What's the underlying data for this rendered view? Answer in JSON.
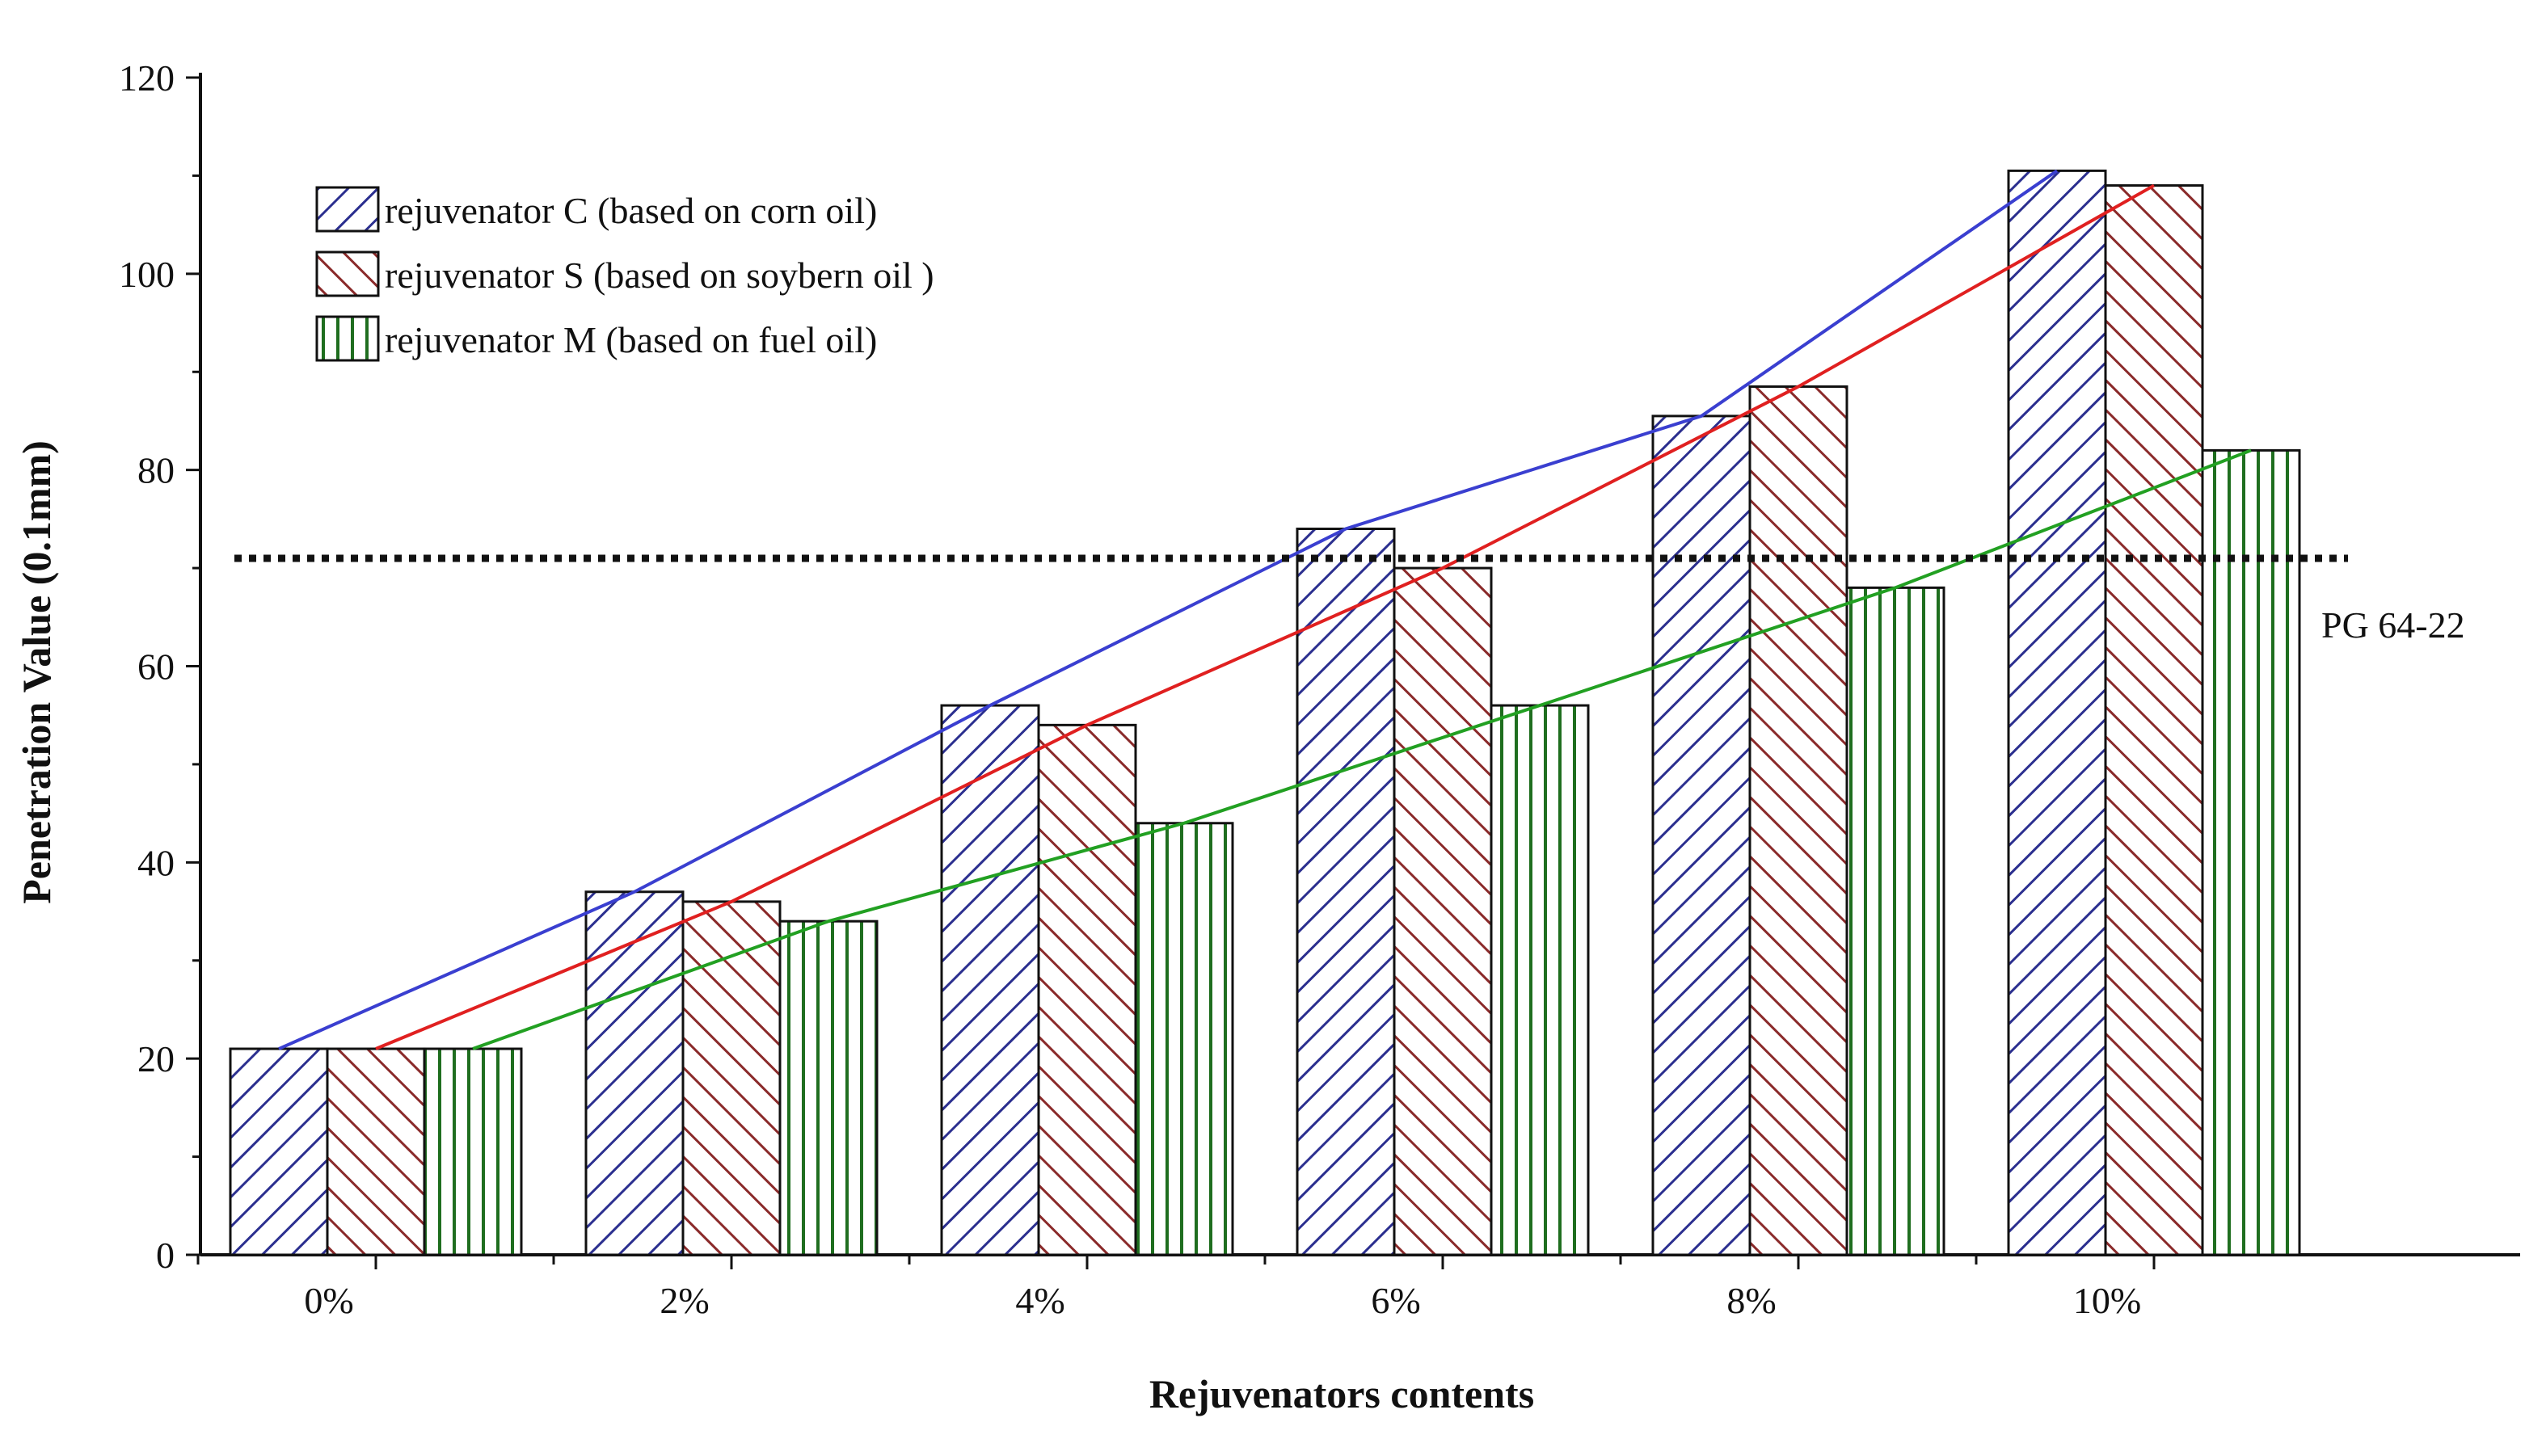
{
  "chart_data": {
    "type": "bar",
    "categories": [
      "0%",
      "2%",
      "4%",
      "6%",
      "8%",
      "10%"
    ],
    "series": [
      {
        "name": "rejuvenator C (based on corn oil)",
        "values": [
          21,
          37,
          56,
          74,
          85.5,
          110.5
        ],
        "color": "#2b2f8f",
        "trend_color": "#3a3fd0",
        "pattern": "diag-right"
      },
      {
        "name": "rejuvenator S (based on soybern oil )",
        "values": [
          21,
          36,
          54,
          70,
          88.5,
          109
        ],
        "color": "#8a2a2a",
        "trend_color": "#e02020",
        "pattern": "diag-left"
      },
      {
        "name": "rejuvenator M (based on fuel oil)",
        "values": [
          21,
          34,
          44,
          56,
          68,
          82
        ],
        "color": "#1f6e1f",
        "trend_color": "#22a022",
        "pattern": "vertical"
      }
    ],
    "reference_line": {
      "value": 71,
      "label": "PG 64-22",
      "style": "dotted"
    },
    "title": "",
    "xlabel": "Rejuvenators contents",
    "ylabel": "Penetration Value (0.1mm)",
    "ylim": [
      0,
      120
    ],
    "yticks": [
      "0",
      "20",
      "40",
      "60",
      "80",
      "100",
      "120"
    ],
    "grid": false,
    "legend_position": "top-left",
    "trend_lines": true
  }
}
